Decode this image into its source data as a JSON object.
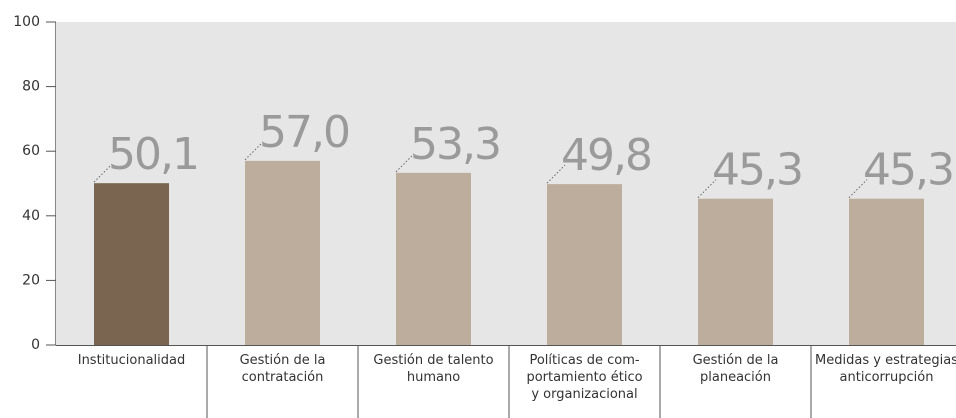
{
  "chart_data": {
    "type": "bar",
    "categories": [
      "Institucionalidad",
      "Gestión de la\ncontratación",
      "Gestión de talento\nhumano",
      "Políticas de com-\nportamiento ético\ny organizacional",
      "Gestión de la\nplaneación",
      "Medidas y estrategias\nanticorrupción"
    ],
    "values": [
      50.1,
      57.0,
      53.3,
      49.8,
      45.3,
      45.3
    ],
    "value_labels": [
      "50,1",
      "57,0",
      "53,3",
      "49,8",
      "45,3",
      "45,3"
    ],
    "colors": [
      "#7a6650",
      "#bcad9c",
      "#bcad9c",
      "#bcad9c",
      "#bcad9c",
      "#bcad9c"
    ],
    "ylim": [
      0,
      100
    ],
    "yticks": [
      0,
      20,
      40,
      60,
      80,
      100
    ]
  }
}
